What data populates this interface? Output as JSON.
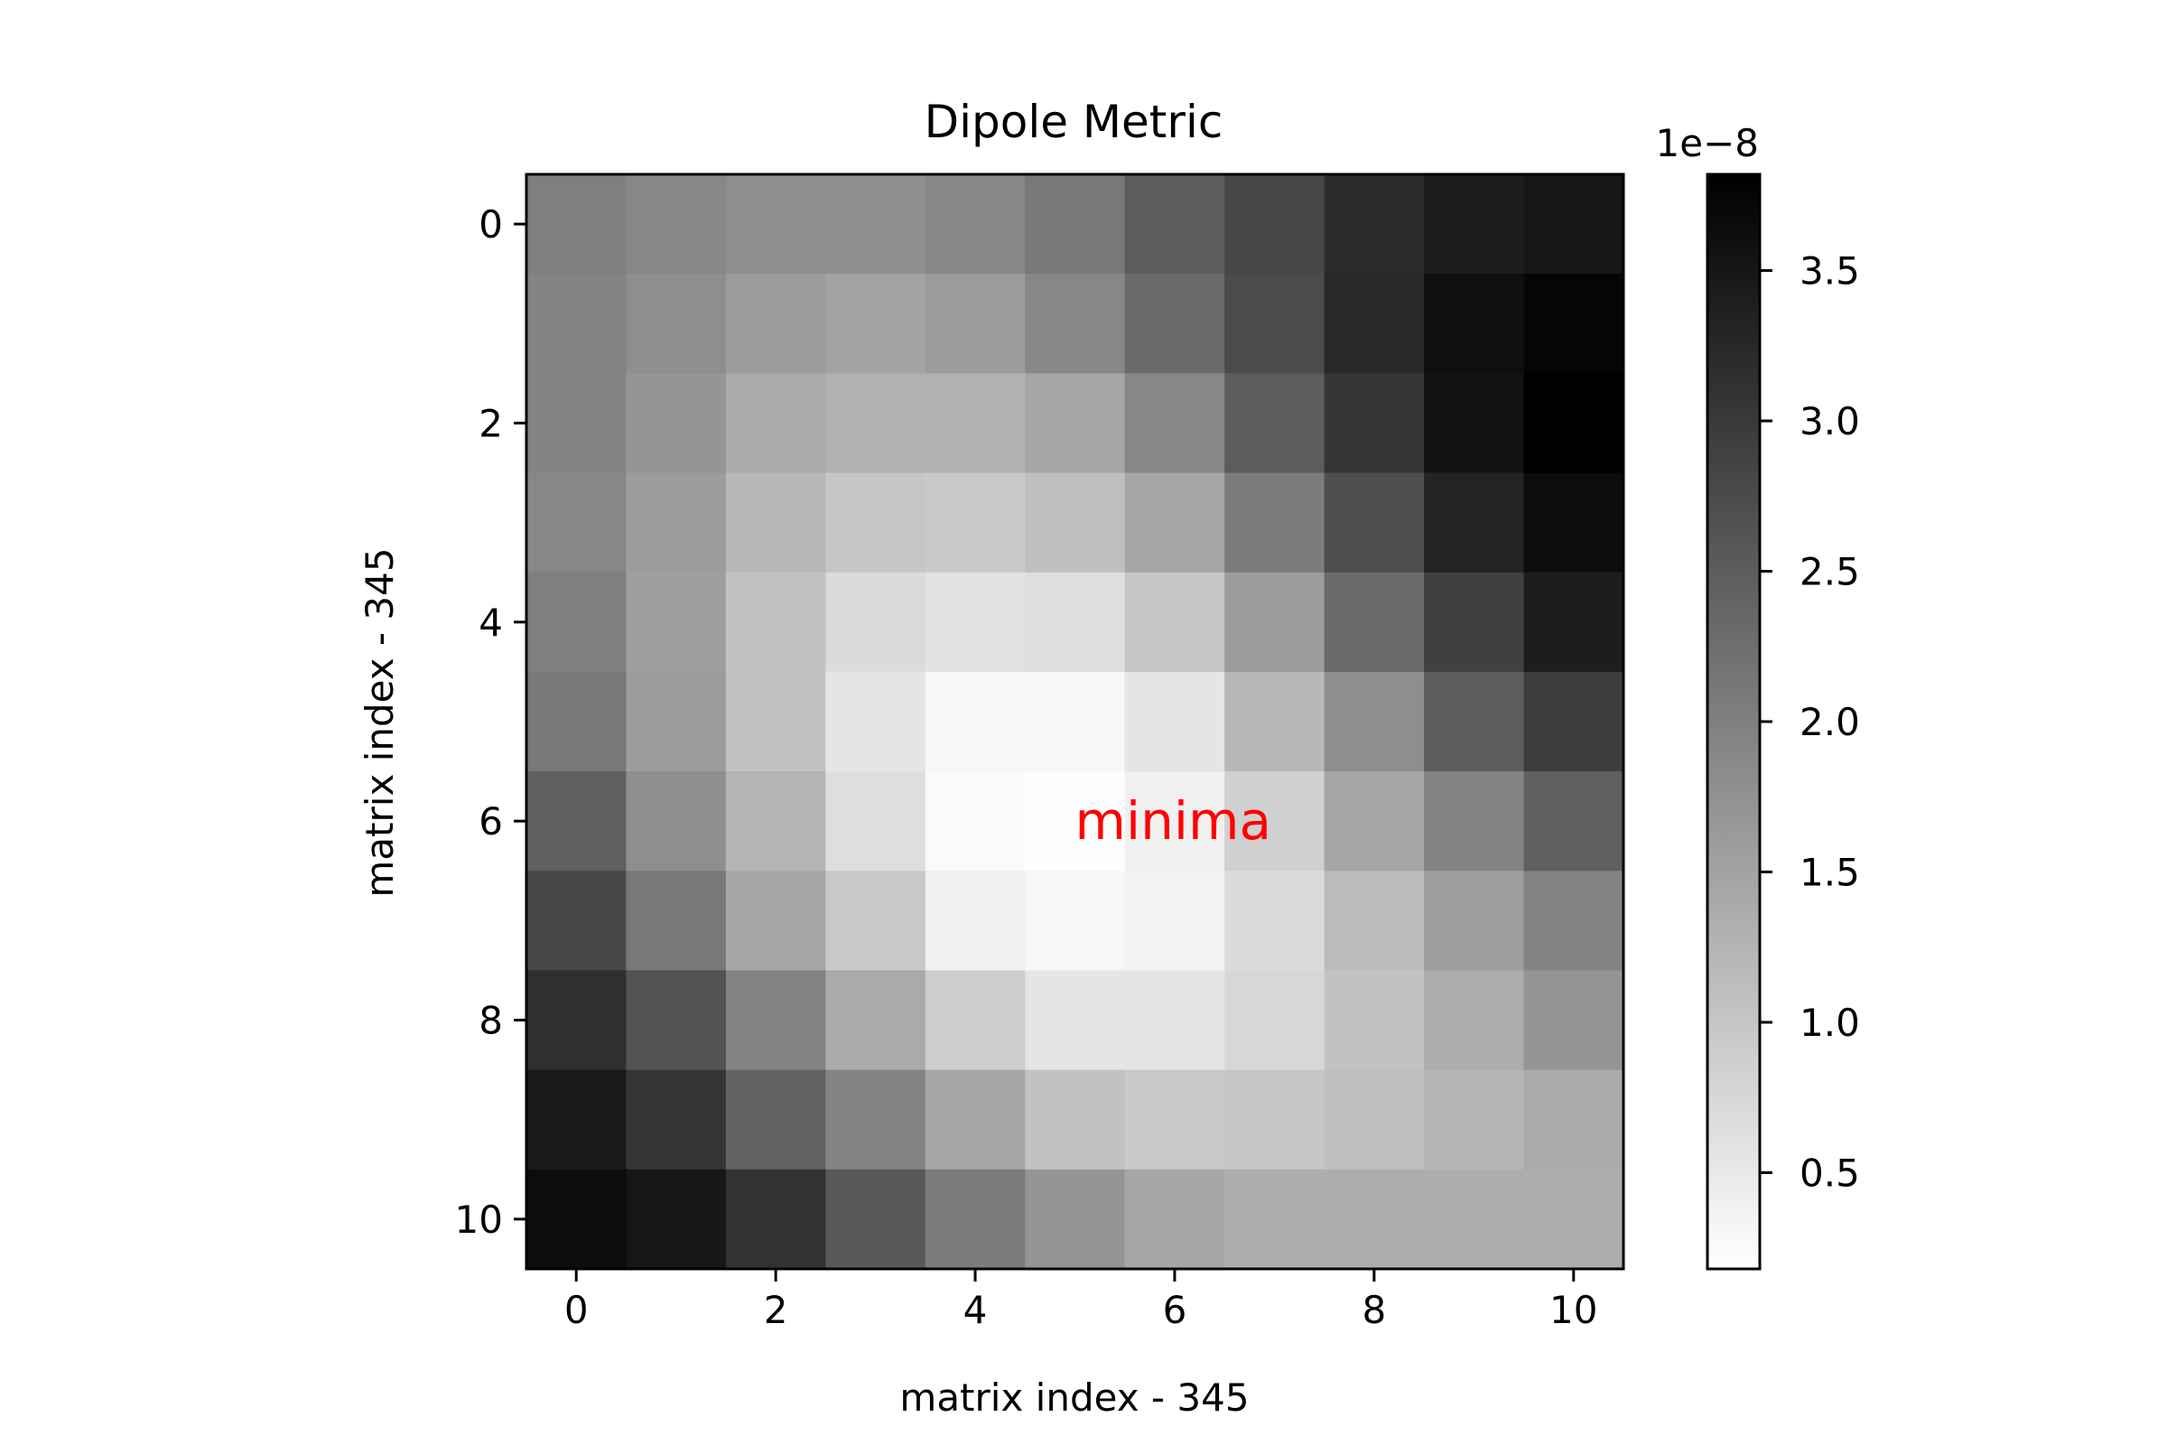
{
  "chart_data": {
    "type": "heatmap",
    "title": "Dipole Metric",
    "xlabel": "matrix index - 345",
    "ylabel": "matrix index - 345",
    "x_ticks": [
      "0",
      "2",
      "4",
      "6",
      "8",
      "10"
    ],
    "y_ticks": [
      "0",
      "2",
      "4",
      "6",
      "8",
      "10"
    ],
    "colormap": "gray_r",
    "colorbar": {
      "range": [
        0.18,
        3.82
      ],
      "ticks": [
        "0.5",
        "1.0",
        "1.5",
        "2.0",
        "2.5",
        "3.0",
        "3.5"
      ],
      "offset_text": "1e−8"
    },
    "annotation": {
      "text": "minima",
      "x": 5,
      "y": 6,
      "color": "#ff0000"
    },
    "values": [
      [
        2.0,
        1.9,
        1.8,
        1.8,
        1.9,
        2.1,
        2.5,
        2.8,
        3.2,
        3.4,
        3.5
      ],
      [
        1.95,
        1.8,
        1.6,
        1.5,
        1.6,
        1.9,
        2.3,
        2.75,
        3.25,
        3.6,
        3.75
      ],
      [
        1.95,
        1.7,
        1.4,
        1.3,
        1.3,
        1.45,
        1.9,
        2.5,
        3.05,
        3.55,
        3.82
      ],
      [
        1.9,
        1.6,
        1.2,
        1.0,
        0.95,
        1.1,
        1.45,
        2.05,
        2.7,
        3.3,
        3.65
      ],
      [
        2.0,
        1.55,
        1.05,
        0.7,
        0.6,
        0.65,
        1.0,
        1.6,
        2.3,
        2.9,
        3.4
      ],
      [
        2.1,
        1.6,
        1.05,
        0.55,
        0.3,
        0.3,
        0.55,
        1.2,
        1.8,
        2.5,
        2.95
      ],
      [
        2.45,
        1.8,
        1.25,
        0.65,
        0.25,
        0.2,
        0.4,
        0.85,
        1.45,
        1.95,
        2.45
      ],
      [
        2.8,
        2.1,
        1.45,
        0.95,
        0.4,
        0.3,
        0.35,
        0.7,
        1.15,
        1.55,
        1.95
      ],
      [
        3.15,
        2.65,
        1.95,
        1.4,
        0.9,
        0.55,
        0.55,
        0.75,
        1.05,
        1.35,
        1.7
      ],
      [
        3.45,
        3.05,
        2.4,
        1.95,
        1.45,
        1.05,
        0.95,
        1.0,
        1.1,
        1.25,
        1.4
      ],
      [
        3.65,
        3.5,
        3.1,
        2.55,
        2.05,
        1.7,
        1.45,
        1.35,
        1.35,
        1.35,
        1.35
      ]
    ]
  }
}
